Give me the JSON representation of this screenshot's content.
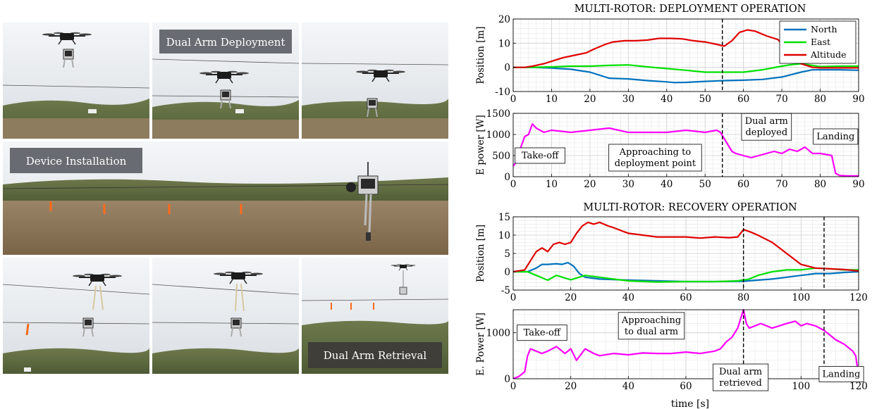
{
  "photo_panel": {
    "captions": {
      "deployment": "Dual Arm Deployment",
      "installation": "Device Installation",
      "retrieval": "Dual Arm Retrieval"
    }
  },
  "chart_data": [
    {
      "id": "deploy_position",
      "type": "line",
      "title": "MULTI-ROTOR: DEPLOYMENT OPERATION",
      "xlabel": "",
      "ylabel": "Position [m]",
      "xlim": [
        0,
        90
      ],
      "ylim": [
        -10,
        20
      ],
      "xticks": [
        0,
        10,
        20,
        30,
        40,
        50,
        60,
        70,
        80,
        90
      ],
      "yticks": [
        -10,
        0,
        10,
        20
      ],
      "grid": true,
      "legend": "top-right",
      "vlines": [
        54.5
      ],
      "series": [
        {
          "name": "North",
          "color": "#0072BD",
          "x": [
            0,
            5,
            10,
            15,
            20,
            25,
            30,
            35,
            40,
            42,
            45,
            50,
            55,
            60,
            65,
            70,
            75,
            78,
            80,
            85,
            90
          ],
          "y": [
            0,
            0,
            -0.3,
            -0.8,
            -2,
            -4.5,
            -4.8,
            -5.5,
            -6,
            -6.3,
            -6.2,
            -5.8,
            -5.5,
            -5.3,
            -5,
            -4,
            -2,
            -1,
            -1,
            -1,
            -1.2
          ]
        },
        {
          "name": "East",
          "color": "#00E000",
          "x": [
            0,
            5,
            10,
            15,
            20,
            25,
            30,
            35,
            40,
            45,
            50,
            55,
            60,
            65,
            70,
            72,
            75,
            80,
            85,
            90
          ],
          "y": [
            0,
            0,
            0.2,
            0.5,
            0.5,
            0.8,
            1,
            0.2,
            -0.5,
            -1.2,
            -2,
            -2,
            -2,
            -1,
            0.5,
            1,
            1.5,
            0.3,
            0.5,
            0.5
          ]
        },
        {
          "name": "Altitude",
          "color": "#E00000",
          "x": [
            0,
            3,
            5,
            8,
            10,
            13,
            16,
            19,
            21,
            24,
            26,
            29,
            32,
            35,
            38,
            41,
            44,
            47,
            50,
            53,
            55,
            57,
            59,
            61,
            63,
            66,
            69,
            71,
            73,
            75,
            78,
            80,
            85,
            90
          ],
          "y": [
            0,
            0,
            0.5,
            1.5,
            2.5,
            4,
            5,
            6,
            7.5,
            9.5,
            10.5,
            11,
            11,
            11.3,
            12,
            12,
            11.8,
            11,
            10.5,
            9.5,
            8.8,
            11,
            14.5,
            15.5,
            15,
            13,
            11.5,
            7.5,
            4,
            1.5,
            0,
            -0.2,
            -0.2,
            -0.2
          ]
        }
      ]
    },
    {
      "id": "deploy_power",
      "type": "line",
      "title": "",
      "xlabel": "",
      "ylabel": "E power [W]",
      "xlim": [
        0,
        90
      ],
      "ylim": [
        0,
        1500
      ],
      "xticks": [
        0,
        10,
        20,
        30,
        40,
        50,
        60,
        70,
        80,
        90
      ],
      "yticks": [
        0,
        500,
        1000,
        1500
      ],
      "grid": true,
      "vlines": [
        54.5
      ],
      "annotations": [
        {
          "text": "Take-off",
          "x": 7,
          "y": 500
        },
        {
          "text": "Approaching to|deployment point",
          "x": 37,
          "y": 450
        },
        {
          "text": "Dual arm|deployed",
          "x": 66,
          "y": 1180
        },
        {
          "text": "Landing",
          "x": 84,
          "y": 950
        }
      ],
      "series": [
        {
          "name": "",
          "color": "#FF00FF",
          "x": [
            0,
            0.8,
            1.5,
            2,
            3,
            4,
            5,
            6,
            8,
            10,
            15,
            20,
            25,
            30,
            35,
            40,
            45,
            50,
            53,
            54,
            55,
            56,
            57,
            58,
            60,
            62,
            64,
            66,
            68,
            70,
            72,
            74,
            76,
            78,
            80,
            82,
            83,
            84,
            85,
            87,
            90
          ],
          "y": [
            250,
            350,
            400,
            700,
            950,
            1000,
            1250,
            1150,
            1050,
            1100,
            1050,
            1100,
            1150,
            1050,
            1050,
            1050,
            1100,
            1050,
            1100,
            1050,
            900,
            750,
            600,
            550,
            500,
            450,
            500,
            550,
            600,
            550,
            650,
            600,
            700,
            550,
            550,
            520,
            500,
            80,
            30,
            20,
            20
          ]
        }
      ]
    },
    {
      "id": "recovery_position",
      "type": "line",
      "title": "MULTI-ROTOR: RECOVERY OPERATION",
      "xlabel": "",
      "ylabel": "Position [m]",
      "xlim": [
        0,
        120
      ],
      "ylim": [
        -5,
        15
      ],
      "xticks": [
        0,
        20,
        40,
        60,
        80,
        100,
        120
      ],
      "yticks": [
        -5,
        0,
        5,
        10,
        15
      ],
      "grid": true,
      "vlines": [
        80,
        108
      ],
      "series": [
        {
          "name": "North",
          "color": "#0072BD",
          "x": [
            0,
            5,
            8,
            10,
            12,
            15,
            17,
            19,
            21,
            23,
            25,
            30,
            40,
            50,
            60,
            70,
            80,
            90,
            95,
            100,
            105,
            110,
            115,
            120
          ],
          "y": [
            0,
            0,
            1,
            2,
            2,
            2.2,
            2,
            2.5,
            1.5,
            -0.5,
            -1.5,
            -2,
            -2.3,
            -2.5,
            -2.7,
            -2.7,
            -2.6,
            -2,
            -1.5,
            -1,
            -0.5,
            -0.5,
            -0.2,
            0
          ]
        },
        {
          "name": "East",
          "color": "#00E000",
          "x": [
            0,
            5,
            8,
            12,
            15,
            20,
            25,
            30,
            40,
            50,
            60,
            70,
            78,
            82,
            85,
            90,
            95,
            100,
            105,
            110,
            115,
            120
          ],
          "y": [
            0,
            0,
            -1,
            -2.3,
            -1,
            -2.2,
            -1,
            -1.5,
            -2.5,
            -2.8,
            -2.7,
            -2.7,
            -2.5,
            -2,
            -1,
            0,
            0.5,
            0.5,
            1,
            0.8,
            0.5,
            0.5
          ]
        },
        {
          "name": "Altitude",
          "color": "#E00000",
          "x": [
            0,
            4,
            6,
            8,
            10,
            12,
            14,
            16,
            18,
            20,
            22,
            24,
            26,
            28,
            30,
            33,
            35,
            40,
            45,
            50,
            55,
            60,
            65,
            70,
            75,
            78,
            80,
            82,
            85,
            90,
            95,
            100,
            105,
            110,
            115,
            120
          ],
          "y": [
            0,
            0.5,
            3,
            5.5,
            6.5,
            5.5,
            7.5,
            8,
            7.5,
            8,
            10.5,
            12.5,
            13.5,
            13,
            13.5,
            12.5,
            12,
            10.5,
            10,
            9.5,
            9.5,
            9.5,
            9.2,
            9.5,
            9.3,
            9.5,
            11.5,
            11,
            10,
            8,
            5,
            2,
            1,
            0.8,
            0.6,
            0.2
          ]
        }
      ]
    },
    {
      "id": "recovery_power",
      "type": "line",
      "title": "",
      "xlabel": "time [s]",
      "ylabel": "E. Power [W]",
      "xlim": [
        0,
        120
      ],
      "ylim": [
        0,
        1500
      ],
      "xticks": [
        0,
        20,
        40,
        60,
        80,
        100,
        120
      ],
      "yticks": [
        0,
        1000
      ],
      "grid": true,
      "vlines": [
        80,
        108
      ],
      "annotations": [
        {
          "text": "Take-off",
          "x": 10,
          "y": 1000
        },
        {
          "text": "Approaching|to dual arm",
          "x": 48,
          "y": 1150
        },
        {
          "text": "Dual arm|retrieved",
          "x": 79,
          "y": 30
        },
        {
          "text": "Landing",
          "x": 114,
          "y": 100
        }
      ],
      "series": [
        {
          "name": "",
          "color": "#FF00FF",
          "x": [
            0,
            2,
            4,
            5,
            6,
            8,
            10,
            12,
            15,
            18,
            20,
            22,
            25,
            28,
            30,
            35,
            40,
            45,
            50,
            55,
            60,
            65,
            70,
            72,
            74,
            76,
            78,
            79,
            80,
            81,
            82,
            84,
            86,
            90,
            95,
            98,
            100,
            102,
            105,
            108,
            110,
            112,
            115,
            118,
            119,
            120
          ],
          "y": [
            0,
            50,
            150,
            500,
            650,
            600,
            550,
            600,
            700,
            550,
            650,
            400,
            650,
            550,
            500,
            550,
            520,
            560,
            550,
            550,
            580,
            550,
            600,
            650,
            800,
            900,
            1100,
            1300,
            1500,
            1200,
            1100,
            1150,
            1200,
            1100,
            1200,
            1250,
            1150,
            1200,
            1150,
            1050,
            950,
            850,
            750,
            600,
            500,
            50
          ]
        }
      ]
    }
  ]
}
